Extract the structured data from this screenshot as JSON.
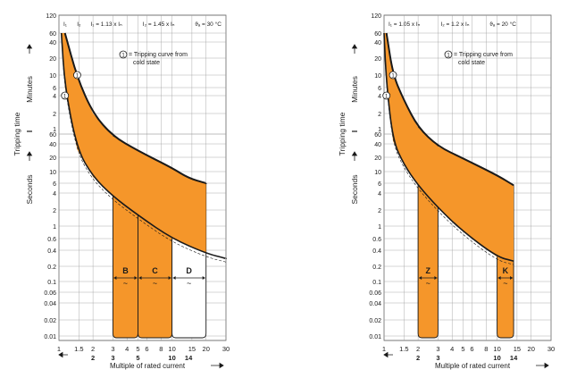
{
  "chart_data": [
    {
      "type": "area",
      "panel": "left",
      "header": [
        "I₁",
        "I₂",
        "I₁ = 1.13 x Iₙ",
        "I₂ = 1.45 x Iₙ",
        "ϑₐ = 30 °C"
      ],
      "legend_marker": "1",
      "legend_text": [
        "= Tripping curve from",
        "cold state"
      ],
      "ylabel_outer": "Tripping time",
      "ylabel_minutes": "Minutes",
      "ylabel_seconds": "Seconds",
      "xlabel": "Multiple of rated current",
      "yticks_minutes": [
        "120",
        "60",
        "40",
        "20",
        "10",
        "6",
        "4",
        "2",
        "1"
      ],
      "yticks_seconds": [
        "60",
        "40",
        "20",
        "10",
        "6",
        "4",
        "2",
        "1",
        "0.6",
        "0.4",
        "0.2",
        "0.1",
        "0.06",
        "0.04",
        "0.02",
        "0.01"
      ],
      "xticks": [
        "1",
        "1.5",
        "2",
        "3",
        "4",
        "5",
        "6",
        "8",
        "10",
        "15",
        "20",
        "30"
      ],
      "xticks_bold": [
        "2",
        "3",
        "5",
        "10",
        "14"
      ],
      "xlim": [
        1,
        30
      ],
      "zones": [
        {
          "label": "B",
          "from": 3,
          "to": 5,
          "fill": "#f5962a"
        },
        {
          "label": "C",
          "from": 5,
          "to": 10,
          "fill": "#f5962a"
        },
        {
          "label": "D",
          "from": 10,
          "to": 20,
          "fill": "#ffffff"
        }
      ],
      "zone_symbol": "~",
      "upper_curve": [
        [
          1.13,
          3600
        ],
        [
          1.45,
          540
        ],
        [
          2,
          120
        ],
        [
          3,
          55
        ],
        [
          5,
          28
        ],
        [
          10,
          12
        ],
        [
          14,
          7.5
        ],
        [
          20,
          6
        ]
      ],
      "lower_curve": [
        [
          1.05,
          3600
        ],
        [
          1.13,
          360
        ],
        [
          1.45,
          30
        ],
        [
          2,
          8
        ],
        [
          3,
          3.5
        ],
        [
          5,
          1.6
        ],
        [
          10,
          0.6
        ],
        [
          20,
          0.35
        ],
        [
          30,
          0.28
        ]
      ],
      "colors": {
        "fill": "#f5962a",
        "line": "#1a1a1a",
        "grid": "#999999"
      }
    },
    {
      "type": "area",
      "panel": "right",
      "header": [
        "I₁ = 1.05 x Iₙ",
        "I₂ = 1.2 x Iₙ",
        "ϑₐ = 20 °C"
      ],
      "legend_marker": "1",
      "legend_text": [
        "= Tripping curve from",
        "cold state"
      ],
      "ylabel_outer": "Tripping time",
      "ylabel_minutes": "Minutes",
      "ylabel_seconds": "Seconds",
      "xlabel": "Multiple of rated current",
      "yticks_minutes": [
        "120",
        "60",
        "40",
        "20",
        "10",
        "6",
        "4",
        "2",
        "1"
      ],
      "yticks_seconds": [
        "60",
        "40",
        "20",
        "10",
        "6",
        "4",
        "2",
        "1",
        "0.6",
        "0.4",
        "0.2",
        "0.1",
        "0.06",
        "0.04",
        "0.02",
        "0.01"
      ],
      "xticks": [
        "1",
        "1.5",
        "2",
        "3",
        "4",
        "5",
        "6",
        "8",
        "10",
        "15",
        "20",
        "30"
      ],
      "xticks_bold": [
        "2",
        "3",
        "10",
        "14"
      ],
      "xlim": [
        1,
        30
      ],
      "zones": [
        {
          "label": "Z",
          "from": 2,
          "to": 3,
          "fill": "#f5962a"
        },
        {
          "label": "K",
          "from": 10,
          "to": 14,
          "fill": "#f5962a"
        }
      ],
      "zone_symbol": "~",
      "upper_curve": [
        [
          1.05,
          3600
        ],
        [
          1.2,
          600
        ],
        [
          1.5,
          200
        ],
        [
          2,
          75
        ],
        [
          3,
          35
        ],
        [
          5,
          19
        ],
        [
          10,
          8.5
        ],
        [
          14,
          5.5
        ]
      ],
      "lower_curve": [
        [
          1.0,
          3600
        ],
        [
          1.05,
          420
        ],
        [
          1.2,
          45
        ],
        [
          1.5,
          14
        ],
        [
          2,
          5.5
        ],
        [
          3,
          2.2
        ],
        [
          5,
          0.8
        ],
        [
          10,
          0.3
        ],
        [
          14,
          0.25
        ]
      ],
      "colors": {
        "fill": "#f5962a",
        "line": "#1a1a1a",
        "grid": "#999999"
      }
    }
  ]
}
